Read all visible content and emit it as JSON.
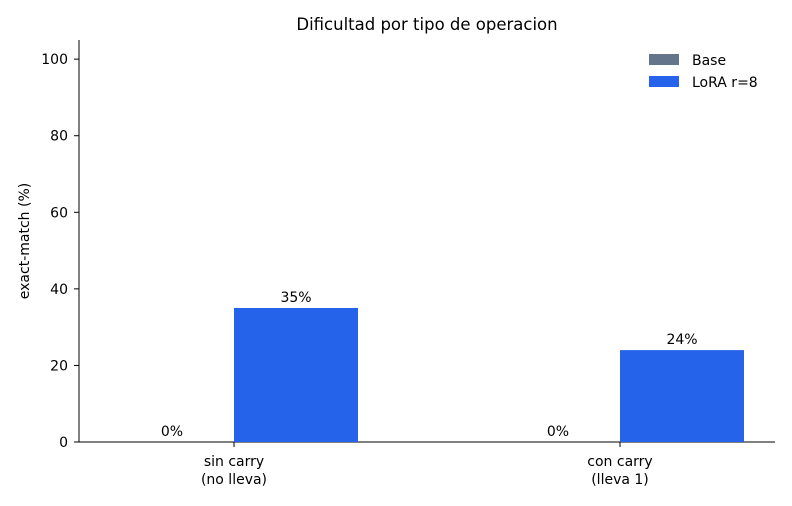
{
  "chart_data": {
    "type": "bar",
    "title": "Dificultad por tipo de operacion",
    "xlabel": "",
    "ylabel": "exact-match (%)",
    "ylim": [
      0,
      105
    ],
    "yticks": [
      0,
      20,
      40,
      60,
      80,
      100
    ],
    "categories": [
      [
        "sin carry",
        "(no lleva)"
      ],
      [
        "con carry",
        "(lleva 1)"
      ]
    ],
    "series": [
      {
        "name": "Base",
        "color": "#64748b",
        "values": [
          0,
          0
        ],
        "labels": [
          "0%",
          "0%"
        ]
      },
      {
        "name": "LoRA r=8",
        "color": "#2563eb",
        "values": [
          35,
          24
        ],
        "labels": [
          "35%",
          "24%"
        ]
      }
    ],
    "legend": "top-right",
    "grid": false
  }
}
